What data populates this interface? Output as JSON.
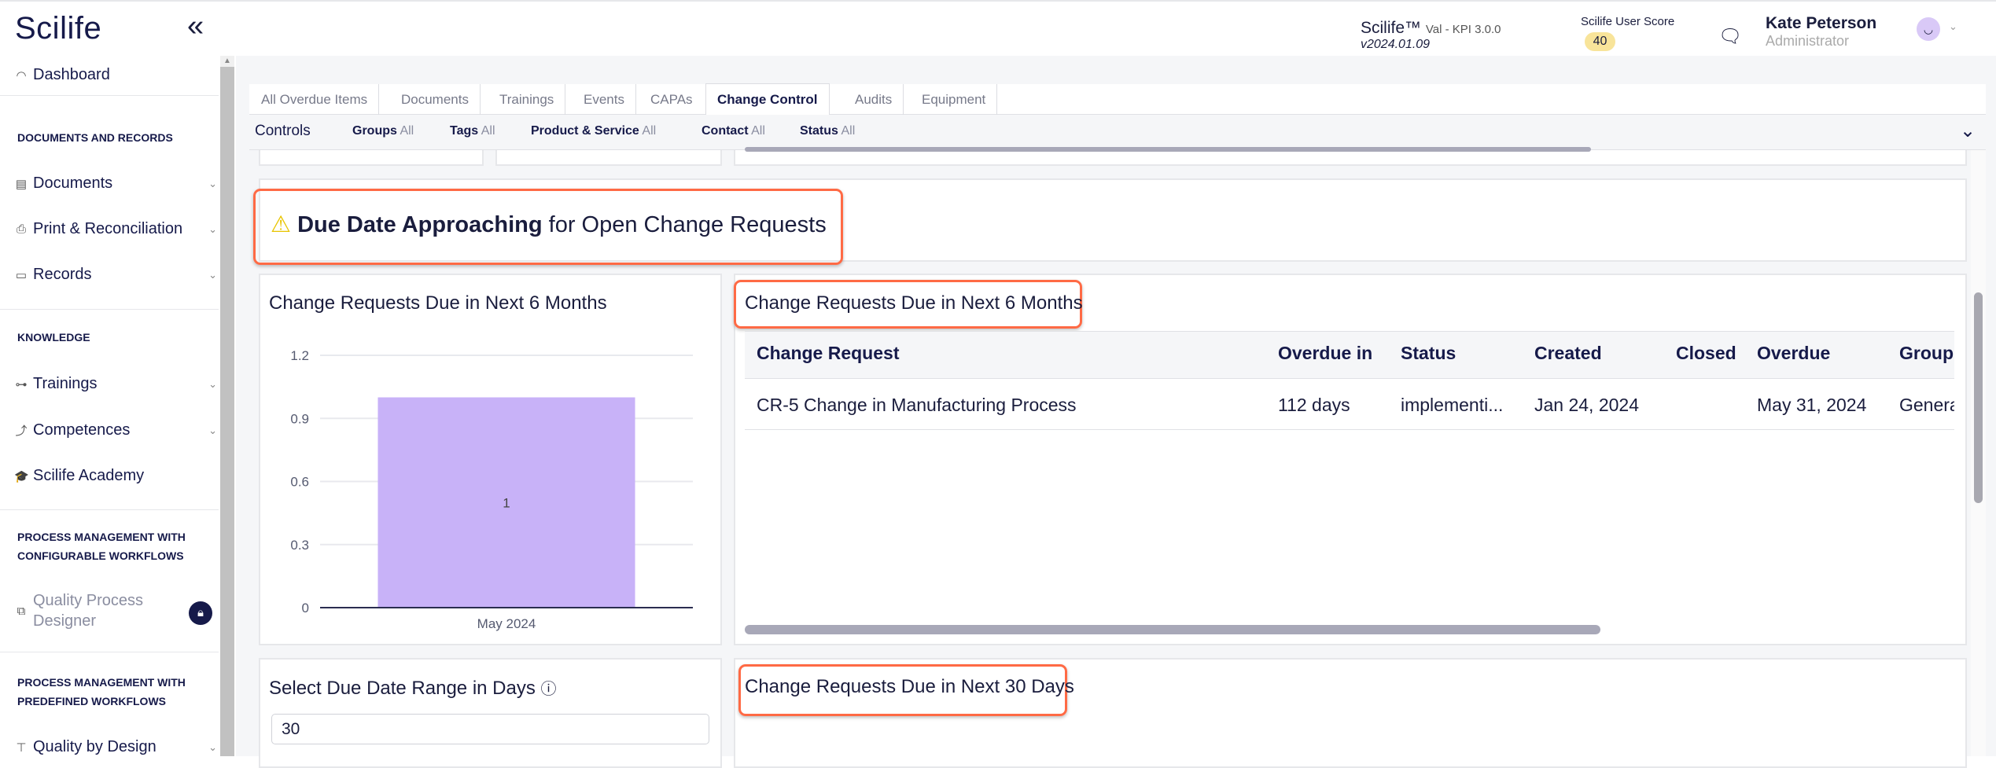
{
  "header": {
    "logo": "Scilife",
    "app_name": "Scilife™",
    "app_env": "Val - KPI 3.0.0",
    "version": "v2024.01.09",
    "score_label": "Scilife User Score",
    "score": "40",
    "user_name": "Kate Peterson",
    "user_role": "Administrator"
  },
  "sidebar": {
    "dashboard": "Dashboard",
    "sections": [
      {
        "title": "DOCUMENTS AND RECORDS",
        "items": [
          "Documents",
          "Print & Reconciliation",
          "Records"
        ]
      },
      {
        "title": "KNOWLEDGE",
        "items": [
          "Trainings",
          "Competences",
          "Scilife Academy"
        ]
      },
      {
        "title": "PROCESS MANAGEMENT WITH CONFIGURABLE WORKFLOWS",
        "items": [
          "Quality Process Designer"
        ]
      },
      {
        "title": "PROCESS MANAGEMENT WITH PREDEFINED WORKFLOWS",
        "items": [
          "Quality by Design"
        ]
      }
    ]
  },
  "tabs": [
    "All Overdue Items",
    "Documents",
    "Trainings",
    "Events",
    "CAPAs",
    "Change Control",
    "Audits",
    "Equipment"
  ],
  "active_tab": "Change Control",
  "controls": {
    "label": "Controls",
    "filters": [
      {
        "name": "Groups",
        "value": "All"
      },
      {
        "name": "Tags",
        "value": "All"
      },
      {
        "name": "Product & Service",
        "value": "All"
      },
      {
        "name": "Contact",
        "value": "All"
      },
      {
        "name": "Status",
        "value": "All"
      }
    ]
  },
  "section_heading": {
    "bold": "Due Date Approaching",
    "rest": "for Open Change Requests"
  },
  "chart_card": {
    "title": "Change Requests Due in Next 6 Months"
  },
  "chart_data": {
    "type": "bar",
    "categories": [
      "May 2024"
    ],
    "values": [
      1
    ],
    "data_labels": [
      "1"
    ],
    "yticks": [
      "0",
      "0.3",
      "0.6",
      "0.9",
      "1.2"
    ],
    "ylim": [
      0,
      1.2
    ],
    "grid": true,
    "bar_color": "#c8b2f8",
    "title": "Change Requests Due in Next 6 Months"
  },
  "table_card": {
    "title": "Change Requests Due in Next 6 Months",
    "columns": [
      "Change Request",
      "Overdue in",
      "Status",
      "Created",
      "Closed",
      "Overdue",
      "Group"
    ],
    "rows": [
      [
        "CR-5 Change in Manufacturing Process",
        "112 days",
        "implementi...",
        "Jan 24, 2024",
        "",
        "May 31, 2024",
        "Genera"
      ]
    ]
  },
  "range_card": {
    "title": "Select Due Date Range in Days",
    "value": "30"
  },
  "days30_card": {
    "title": "Change Requests Due in Next 30 Days"
  },
  "colors": {
    "accent_highlight": "#ff6a45",
    "navy": "#161a4a",
    "score_badge": "#f8e49a",
    "avatar": "#d9c9f7"
  }
}
